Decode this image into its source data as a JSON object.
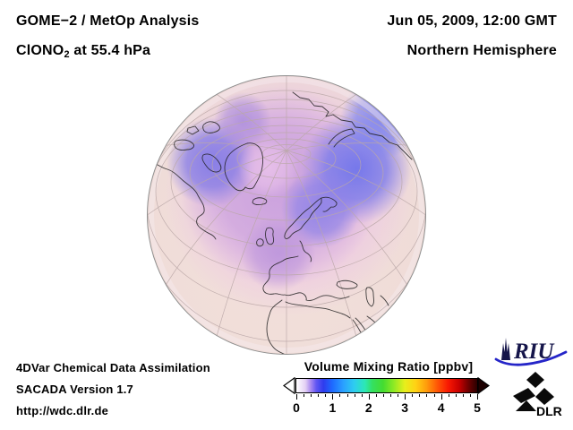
{
  "header": {
    "left_line1": "GOME−2 / MetOp Analysis",
    "left_line2_prefix": "ClONO",
    "left_line2_sub": "2",
    "left_line2_suffix": " at 55.4 hPa",
    "right_line1": "Jun 05, 2009, 12:00 GMT",
    "right_line2": "Northern Hemisphere"
  },
  "footer": {
    "line1": "4DVar Chemical Data Assimilation",
    "line2": "SACADA Version 1.7",
    "line3": "http://wdc.dlr.de"
  },
  "logos": {
    "riu_text": "RIU",
    "dlr_text": "DLR"
  },
  "chart_data": {
    "type": "heatmap",
    "title": "GOME−2 / MetOp Analysis — ClONO2 at 55.4 hPa",
    "datetime": "Jun 05, 2009, 12:00 GMT",
    "region": "Northern Hemisphere",
    "projection": "orthographic globe centered on the Arctic / Europe",
    "colorbar": {
      "label": "Volume Mixing Ratio [ppbv]",
      "min": 0,
      "max": 5,
      "ticks": [
        "0",
        "1",
        "2",
        "3",
        "4",
        "5"
      ],
      "minor_tick_step": 0.2,
      "gradient_stops": [
        {
          "pos": 0.0,
          "color": "#ffffff"
        },
        {
          "pos": 0.05,
          "color": "#e3d0f4"
        },
        {
          "pos": 0.08,
          "color": "#a989f0"
        },
        {
          "pos": 0.11,
          "color": "#6256f2"
        },
        {
          "pos": 0.15,
          "color": "#2e3cee"
        },
        {
          "pos": 0.2,
          "color": "#1e6bff"
        },
        {
          "pos": 0.26,
          "color": "#2aa0ff"
        },
        {
          "pos": 0.32,
          "color": "#2ecdf0"
        },
        {
          "pos": 0.38,
          "color": "#2ce8b4"
        },
        {
          "pos": 0.42,
          "color": "#34e060"
        },
        {
          "pos": 0.48,
          "color": "#44dc30"
        },
        {
          "pos": 0.54,
          "color": "#90ea24"
        },
        {
          "pos": 0.6,
          "color": "#e8ee1c"
        },
        {
          "pos": 0.66,
          "color": "#ffd214"
        },
        {
          "pos": 0.72,
          "color": "#ff9c0c"
        },
        {
          "pos": 0.78,
          "color": "#ff5606"
        },
        {
          "pos": 0.84,
          "color": "#f81802"
        },
        {
          "pos": 0.9,
          "color": "#c80000"
        },
        {
          "pos": 0.95,
          "color": "#700000"
        },
        {
          "pos": 1.0,
          "color": "#2a0000"
        }
      ]
    },
    "field_summary": "Pale pink background (< 0.3 ppbv) over low latitudes; purple-blue maxima (~0.6–1.0 ppbv) over the Arctic, strongest over Siberia/Kara Sea and the Canadian Arctic, with a lighter pink corridor across the pole."
  }
}
